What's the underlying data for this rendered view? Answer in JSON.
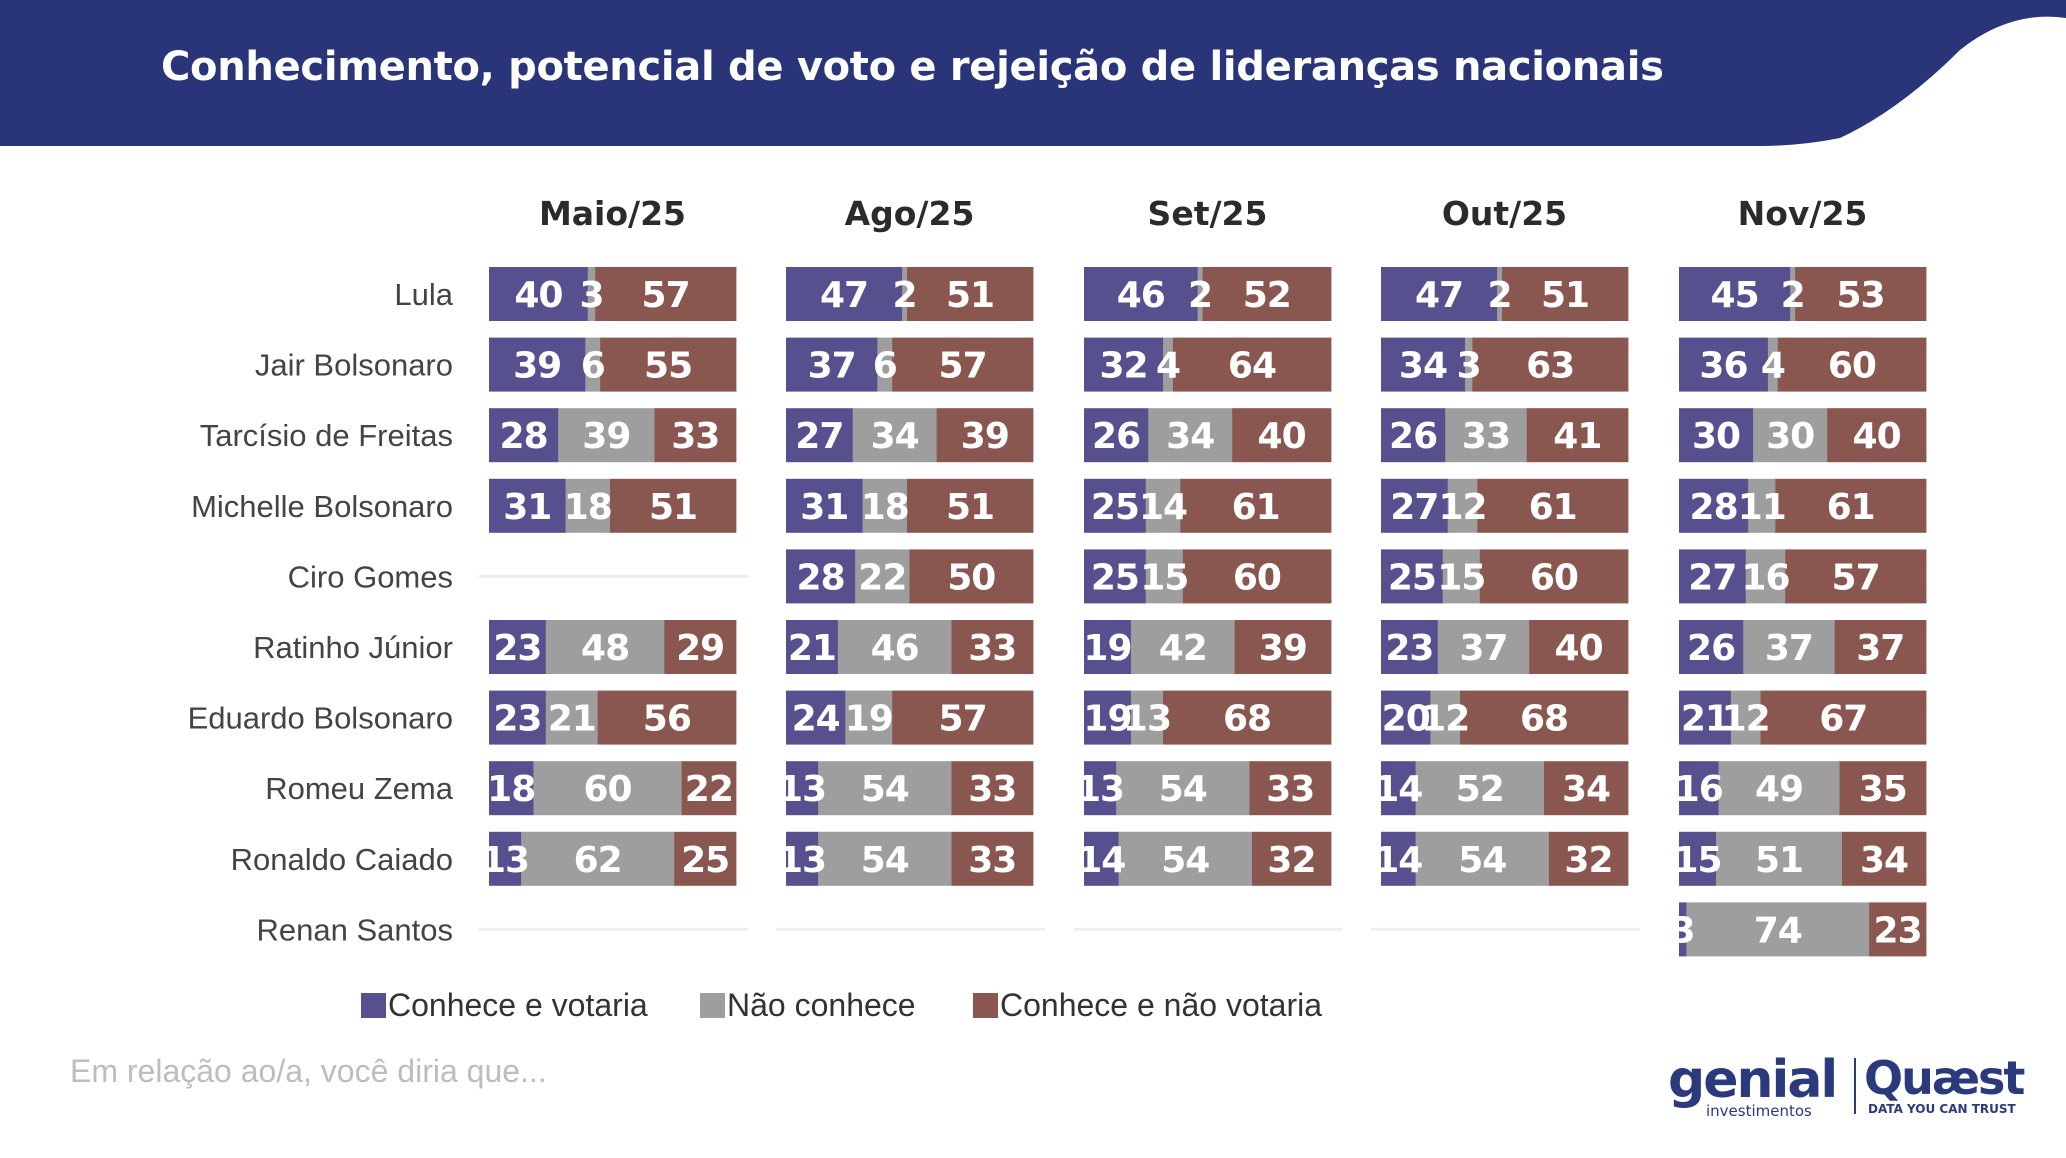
{
  "title": "Conhecimento, potencial de voto e rejeição de lideranças nacionais",
  "colors": {
    "header": "#2a3478",
    "vote": "#57508f",
    "unknown": "#9e9e9e",
    "reject": "#8a5650",
    "empty_line": "#efefef"
  },
  "chart_data": {
    "type": "bar",
    "stacked": "horizontal-100",
    "periods": [
      "Maio/25",
      "Ago/25",
      "Set/25",
      "Out/25",
      "Nov/25"
    ],
    "candidates": [
      "Lula",
      "Jair Bolsonaro",
      "Tarcísio de Freitas",
      "Michelle Bolsonaro",
      "Ciro Gomes",
      "Ratinho Júnior",
      "Eduardo Bolsonaro",
      "Romeu Zema",
      "Ronaldo Caiado",
      "Renan Santos"
    ],
    "series": [
      {
        "name": "Conhece e votaria",
        "color": "#57508f"
      },
      {
        "name": "Não conhece",
        "color": "#9e9e9e"
      },
      {
        "name": "Conhece e não votaria",
        "color": "#8a5650"
      }
    ],
    "values": {
      "Lula": [
        [
          40,
          3,
          57
        ],
        [
          47,
          2,
          51
        ],
        [
          46,
          2,
          52
        ],
        [
          47,
          2,
          51
        ],
        [
          45,
          2,
          53
        ]
      ],
      "Jair Bolsonaro": [
        [
          39,
          6,
          55
        ],
        [
          37,
          6,
          57
        ],
        [
          32,
          4,
          64
        ],
        [
          34,
          3,
          63
        ],
        [
          36,
          4,
          60
        ]
      ],
      "Tarcísio de Freitas": [
        [
          28,
          39,
          33
        ],
        [
          27,
          34,
          39
        ],
        [
          26,
          34,
          40
        ],
        [
          26,
          33,
          41
        ],
        [
          30,
          30,
          40
        ]
      ],
      "Michelle Bolsonaro": [
        [
          31,
          18,
          51
        ],
        [
          31,
          18,
          51
        ],
        [
          25,
          14,
          61
        ],
        [
          27,
          12,
          61
        ],
        [
          28,
          11,
          61
        ]
      ],
      "Ciro Gomes": [
        null,
        [
          28,
          22,
          50
        ],
        [
          25,
          15,
          60
        ],
        [
          25,
          15,
          60
        ],
        [
          27,
          16,
          57
        ]
      ],
      "Ratinho Júnior": [
        [
          23,
          48,
          29
        ],
        [
          21,
          46,
          33
        ],
        [
          19,
          42,
          39
        ],
        [
          23,
          37,
          40
        ],
        [
          26,
          37,
          37
        ]
      ],
      "Eduardo Bolsonaro": [
        [
          23,
          21,
          56
        ],
        [
          24,
          19,
          57
        ],
        [
          19,
          13,
          68
        ],
        [
          20,
          12,
          68
        ],
        [
          21,
          12,
          67
        ]
      ],
      "Romeu Zema": [
        [
          18,
          60,
          22
        ],
        [
          13,
          54,
          33
        ],
        [
          13,
          54,
          33
        ],
        [
          14,
          52,
          34
        ],
        [
          16,
          49,
          35
        ]
      ],
      "Ronaldo Caiado": [
        [
          13,
          62,
          25
        ],
        [
          13,
          54,
          33
        ],
        [
          14,
          54,
          32
        ],
        [
          14,
          54,
          32
        ],
        [
          15,
          51,
          34
        ]
      ],
      "Renan Santos": [
        null,
        null,
        null,
        null,
        [
          3,
          74,
          23
        ]
      ]
    }
  },
  "legend": [
    {
      "label": "Conhece e votaria",
      "color": "#57508f"
    },
    {
      "label": "Não conhece",
      "color": "#9e9e9e"
    },
    {
      "label": "Conhece e não votaria",
      "color": "#8a5650"
    }
  ],
  "footnote": "Em relação ao/a, você diria que...",
  "logos": {
    "genial": "genial",
    "genial_sub": "investimentos",
    "quaest": "Quæst",
    "quaest_sub": "DATA YOU CAN TRUST"
  }
}
